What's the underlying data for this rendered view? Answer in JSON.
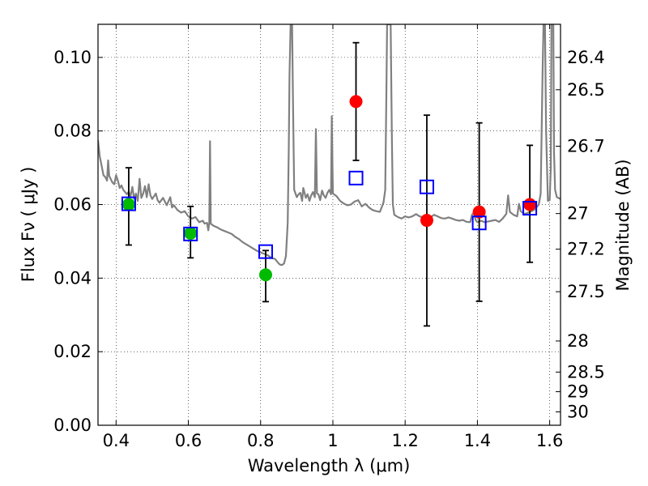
{
  "chart_data": {
    "type": "scatter",
    "xlabel": "Wavelength  λ (μm)",
    "ylabel": "Flux  Fν  ( μJy )",
    "y2label": "Magnitude (AB)",
    "xlim": [
      0.35,
      1.63
    ],
    "ylim": [
      0.0,
      0.109
    ],
    "grid": true,
    "x_ticks": [
      0.4,
      0.6,
      0.8,
      1.0,
      1.2,
      1.4,
      1.6
    ],
    "x_tick_labels": [
      "0.4",
      "0.6",
      "0.8",
      "1",
      "1.2",
      "1.4",
      "1.6"
    ],
    "y_ticks": [
      0.0,
      0.02,
      0.04,
      0.06,
      0.08,
      0.1
    ],
    "y_tick_labels": [
      "0.00",
      "0.02",
      "0.04",
      "0.06",
      "0.08",
      "0.10"
    ],
    "mag_ticks": [
      26.4,
      26.5,
      26.7,
      27,
      27.2,
      27.5,
      28,
      28.5,
      29,
      30
    ],
    "mag_tick_labels": [
      "26.4",
      "26.5",
      "26.7",
      "27",
      "27.2",
      "27.5",
      "28",
      "28.5",
      "29",
      "30"
    ],
    "series": [
      {
        "marker": "circle",
        "color": "#ff0000",
        "points": [
          {
            "x": 1.064,
            "y": 0.088,
            "err": [
              0.072,
              0.104
            ]
          },
          {
            "x": 1.26,
            "y": 0.0557,
            "err": [
              0.027,
              0.0843
            ]
          },
          {
            "x": 1.405,
            "y": 0.058,
            "err": [
              0.0337,
              0.0822
            ]
          },
          {
            "x": 1.545,
            "y": 0.06,
            "err": [
              0.0443,
              0.0761
            ]
          }
        ]
      },
      {
        "marker": "circle",
        "color": "#00bb00",
        "points": [
          {
            "x": 0.435,
            "y": 0.06,
            "err": [
              0.049,
              0.07
            ]
          },
          {
            "x": 0.606,
            "y": 0.0522,
            "err": [
              0.0455,
              0.0595
            ]
          },
          {
            "x": 0.814,
            "y": 0.0409,
            "err": [
              0.0336,
              0.0475
            ]
          }
        ]
      },
      {
        "marker": "square",
        "color": "#0000ff",
        "points": [
          {
            "x": 0.435,
            "y": 0.0602
          },
          {
            "x": 0.606,
            "y": 0.052
          },
          {
            "x": 0.814,
            "y": 0.0472
          },
          {
            "x": 1.064,
            "y": 0.0672
          },
          {
            "x": 1.26,
            "y": 0.0648
          },
          {
            "x": 1.405,
            "y": 0.055
          },
          {
            "x": 1.545,
            "y": 0.059
          }
        ]
      },
      {
        "type": "line",
        "color": "#808080",
        "points": [
          [
            0.35,
            0.0775
          ],
          [
            0.355,
            0.073
          ],
          [
            0.36,
            0.0705
          ],
          [
            0.365,
            0.068
          ],
          [
            0.37,
            0.0675
          ],
          [
            0.375,
            0.0665
          ],
          [
            0.378,
            0.072
          ],
          [
            0.381,
            0.0678
          ],
          [
            0.39,
            0.066
          ],
          [
            0.395,
            0.0655
          ],
          [
            0.4,
            0.068
          ],
          [
            0.405,
            0.0665
          ],
          [
            0.41,
            0.0645
          ],
          [
            0.415,
            0.0652
          ],
          [
            0.42,
            0.064
          ],
          [
            0.43,
            0.0628
          ],
          [
            0.435,
            0.0635
          ],
          [
            0.44,
            0.0622
          ],
          [
            0.445,
            0.0648
          ],
          [
            0.45,
            0.0615
          ],
          [
            0.455,
            0.063
          ],
          [
            0.46,
            0.061
          ],
          [
            0.465,
            0.067
          ],
          [
            0.47,
            0.0618
          ],
          [
            0.475,
            0.063
          ],
          [
            0.48,
            0.065
          ],
          [
            0.485,
            0.062
          ],
          [
            0.49,
            0.0655
          ],
          [
            0.495,
            0.0625
          ],
          [
            0.5,
            0.0615
          ],
          [
            0.51,
            0.063
          ],
          [
            0.515,
            0.0612
          ],
          [
            0.52,
            0.0605
          ],
          [
            0.53,
            0.0618
          ],
          [
            0.54,
            0.0598
          ],
          [
            0.55,
            0.062
          ],
          [
            0.555,
            0.0592
          ],
          [
            0.56,
            0.0598
          ],
          [
            0.57,
            0.0585
          ],
          [
            0.58,
            0.0578
          ],
          [
            0.59,
            0.0582
          ],
          [
            0.6,
            0.0568
          ],
          [
            0.61,
            0.0562
          ],
          [
            0.62,
            0.0566
          ],
          [
            0.63,
            0.0552
          ],
          [
            0.64,
            0.0556
          ],
          [
            0.645,
            0.0548
          ],
          [
            0.652,
            0.055
          ],
          [
            0.655,
            0.053
          ],
          [
            0.658,
            0.055
          ],
          [
            0.66,
            0.0772
          ],
          [
            0.662,
            0.0548
          ],
          [
            0.67,
            0.0542
          ],
          [
            0.68,
            0.0538
          ],
          [
            0.69,
            0.0532
          ],
          [
            0.7,
            0.0528
          ],
          [
            0.71,
            0.0524
          ],
          [
            0.72,
            0.052
          ],
          [
            0.73,
            0.0512
          ],
          [
            0.74,
            0.0506
          ],
          [
            0.75,
            0.0498
          ],
          [
            0.76,
            0.0492
          ],
          [
            0.77,
            0.0486
          ],
          [
            0.78,
            0.048
          ],
          [
            0.79,
            0.0474
          ],
          [
            0.8,
            0.047
          ],
          [
            0.81,
            0.0466
          ],
          [
            0.82,
            0.0462
          ],
          [
            0.83,
            0.0455
          ],
          [
            0.84,
            0.0452
          ],
          [
            0.845,
            0.0446
          ],
          [
            0.85,
            0.044
          ],
          [
            0.855,
            0.0436
          ],
          [
            0.86,
            0.0436
          ],
          [
            0.865,
            0.044
          ],
          [
            0.87,
            0.046
          ],
          [
            0.875,
            0.055
          ],
          [
            0.878,
            0.075
          ],
          [
            0.88,
            0.095
          ],
          [
            0.883,
            0.109
          ],
          [
            0.887,
            0.109
          ],
          [
            0.89,
            0.085
          ],
          [
            0.893,
            0.064
          ],
          [
            0.9,
            0.062
          ],
          [
            0.905,
            0.0628
          ],
          [
            0.91,
            0.0632
          ],
          [
            0.915,
            0.061
          ],
          [
            0.918,
            0.0645
          ],
          [
            0.92,
            0.0638
          ],
          [
            0.925,
            0.0618
          ],
          [
            0.93,
            0.0628
          ],
          [
            0.935,
            0.061
          ],
          [
            0.94,
            0.0625
          ],
          [
            0.945,
            0.0634
          ],
          [
            0.95,
            0.062
          ],
          [
            0.953,
            0.0805
          ],
          [
            0.956,
            0.063
          ],
          [
            0.96,
            0.0628
          ],
          [
            0.965,
            0.0612
          ],
          [
            0.97,
            0.0638
          ],
          [
            0.975,
            0.0625
          ],
          [
            0.98,
            0.0618
          ],
          [
            0.985,
            0.0632
          ],
          [
            0.99,
            0.064
          ],
          [
            0.995,
            0.0628
          ],
          [
            0.997,
            0.084
          ],
          [
            1.0,
            0.063
          ],
          [
            1.01,
            0.0623
          ],
          [
            1.02,
            0.061
          ],
          [
            1.03,
            0.0603
          ],
          [
            1.04,
            0.0598
          ],
          [
            1.05,
            0.06
          ],
          [
            1.06,
            0.0608
          ],
          [
            1.07,
            0.0612
          ],
          [
            1.08,
            0.0595
          ],
          [
            1.09,
            0.0602
          ],
          [
            1.1,
            0.0592
          ],
          [
            1.11,
            0.0585
          ],
          [
            1.12,
            0.0582
          ],
          [
            1.13,
            0.058
          ],
          [
            1.14,
            0.0605
          ],
          [
            1.145,
            0.064
          ],
          [
            1.148,
            0.09
          ],
          [
            1.15,
            0.109
          ],
          [
            1.16,
            0.109
          ],
          [
            1.163,
            0.08
          ],
          [
            1.166,
            0.06
          ],
          [
            1.17,
            0.0572
          ],
          [
            1.18,
            0.0566
          ],
          [
            1.19,
            0.0562
          ],
          [
            1.2,
            0.0568
          ],
          [
            1.21,
            0.0565
          ],
          [
            1.22,
            0.0568
          ],
          [
            1.23,
            0.0574
          ],
          [
            1.24,
            0.0568
          ],
          [
            1.25,
            0.0565
          ],
          [
            1.26,
            0.0558
          ],
          [
            1.27,
            0.0565
          ],
          [
            1.28,
            0.0572
          ],
          [
            1.29,
            0.0568
          ],
          [
            1.3,
            0.0563
          ],
          [
            1.31,
            0.0562
          ],
          [
            1.32,
            0.0565
          ],
          [
            1.33,
            0.0562
          ],
          [
            1.34,
            0.0558
          ],
          [
            1.35,
            0.0556
          ],
          [
            1.36,
            0.0558
          ],
          [
            1.37,
            0.0553
          ],
          [
            1.38,
            0.0552
          ],
          [
            1.385,
            0.0572
          ],
          [
            1.39,
            0.0578
          ],
          [
            1.395,
            0.0558
          ],
          [
            1.4,
            0.0552
          ],
          [
            1.41,
            0.0556
          ],
          [
            1.42,
            0.0552
          ],
          [
            1.43,
            0.0554
          ],
          [
            1.44,
            0.0556
          ],
          [
            1.45,
            0.0558
          ],
          [
            1.46,
            0.0553
          ],
          [
            1.47,
            0.0562
          ],
          [
            1.48,
            0.0575
          ],
          [
            1.485,
            0.0625
          ],
          [
            1.49,
            0.058
          ],
          [
            1.5,
            0.0572
          ],
          [
            1.51,
            0.0568
          ],
          [
            1.515,
            0.0602
          ],
          [
            1.52,
            0.0582
          ],
          [
            1.53,
            0.0574
          ],
          [
            1.54,
            0.0578
          ],
          [
            1.55,
            0.0582
          ],
          [
            1.56,
            0.0588
          ],
          [
            1.57,
            0.06
          ],
          [
            1.575,
            0.063
          ],
          [
            1.58,
            0.094
          ],
          [
            1.583,
            0.109
          ],
          [
            1.587,
            0.109
          ],
          [
            1.59,
            0.08
          ],
          [
            1.595,
            0.061
          ],
          [
            1.6,
            0.0612
          ],
          [
            1.603,
            0.07
          ],
          [
            1.605,
            0.109
          ],
          [
            1.61,
            0.109
          ],
          [
            1.612,
            0.074
          ],
          [
            1.615,
            0.064
          ],
          [
            1.62,
            0.062
          ],
          [
            1.63,
            0.0615
          ]
        ]
      }
    ]
  }
}
